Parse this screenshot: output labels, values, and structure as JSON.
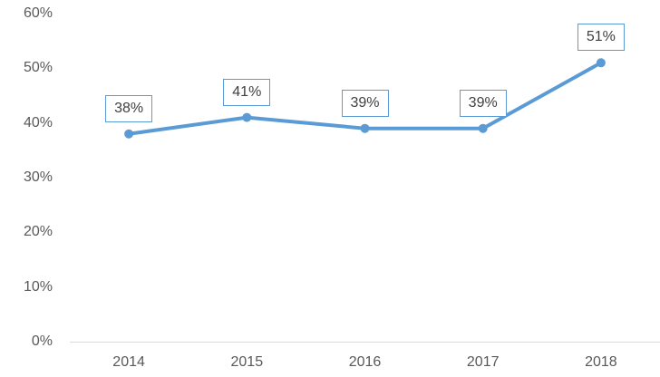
{
  "chart_data": {
    "type": "line",
    "title": "",
    "xlabel": "",
    "ylabel": "",
    "categories": [
      "2014",
      "2015",
      "2016",
      "2017",
      "2018"
    ],
    "series": [
      {
        "name": "",
        "values": [
          38,
          41,
          39,
          39,
          51
        ]
      }
    ],
    "data_labels": [
      "38%",
      "41%",
      "39%",
      "39%",
      "51%"
    ],
    "y_ticks": [
      {
        "value": 0,
        "label": "0%"
      },
      {
        "value": 10,
        "label": "10%"
      },
      {
        "value": 20,
        "label": "20%"
      },
      {
        "value": 30,
        "label": "30%"
      },
      {
        "value": 40,
        "label": "40%"
      },
      {
        "value": 50,
        "label": "50%"
      },
      {
        "value": 60,
        "label": "60%"
      }
    ],
    "ylim": [
      0,
      60
    ],
    "grid": false,
    "legend": false,
    "colors": {
      "line": "#5B9BD5",
      "marker": "#5B9BD5",
      "data_label_border": "#5B9BD5",
      "data_label_text": "#404040",
      "data_label_background": "#FFFFFF",
      "tick_text": "#595959",
      "axis_line": "#D9D9D9",
      "background": "#FFFFFF"
    }
  }
}
